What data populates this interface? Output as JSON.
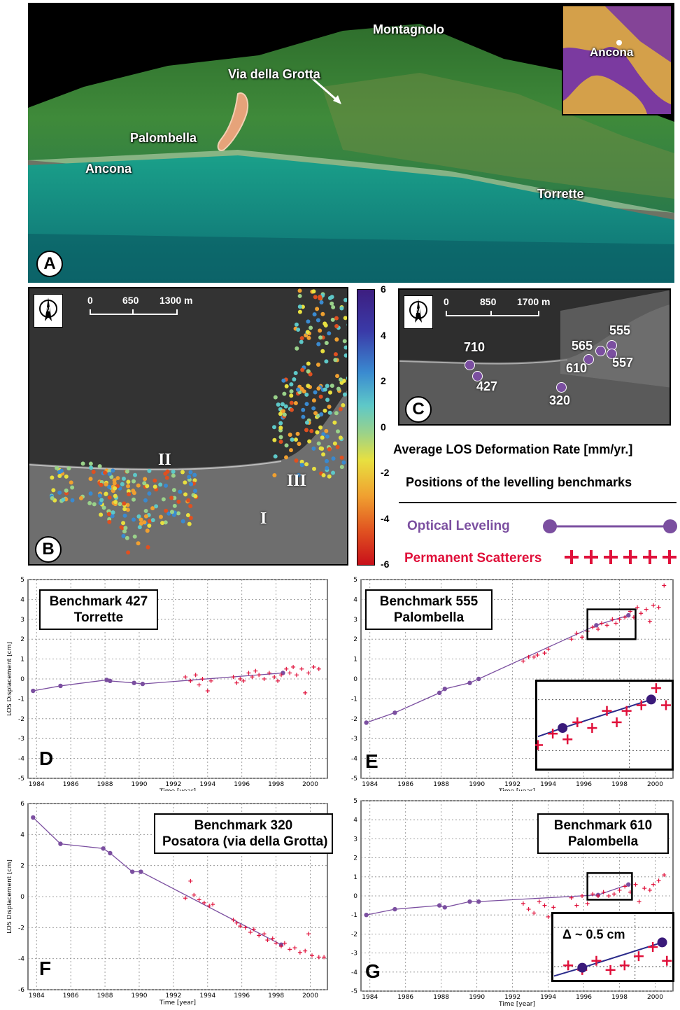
{
  "panel_a": {
    "letter": "A",
    "labels": {
      "montagnolo": "Montagnolo",
      "via_della_grotta": "Via della Grotta",
      "palombella": "Palombella",
      "ancona": "Ancona",
      "torrette": "Torrette"
    },
    "inset_label": "Ancona"
  },
  "panel_b": {
    "letter": "B",
    "scale": {
      "t0": "0",
      "t1": "650",
      "t2": "1300 m"
    },
    "zones": {
      "i": "I",
      "ii": "II",
      "iii": "III"
    }
  },
  "panel_c": {
    "letter": "C",
    "scale": {
      "t0": "0",
      "t1": "850",
      "t2": "1700 m"
    },
    "benchmarks": {
      "b710": "710",
      "b427": "427",
      "b565": "565",
      "b555": "555",
      "b557": "557",
      "b610": "610",
      "b320": "320"
    }
  },
  "colorbar": {
    "ticks": [
      "6",
      "4",
      "2",
      "0",
      "-2",
      "-4",
      "-6"
    ],
    "min": -6,
    "max": 6
  },
  "legend": {
    "title": "Average LOS Deformation Rate [mm/yr.]",
    "subtitle": "Positions of the levelling benchmarks",
    "optical": "Optical Leveling",
    "ps": "Permanent Scatterers",
    "colors": {
      "optical": "#7b4fa0",
      "ps": "#e0103a"
    }
  },
  "chart_data": [
    {
      "id": "D",
      "type": "scatter",
      "letter": "D",
      "box_line1": "Benchmark 427",
      "box_line2": "Torrette",
      "ylabel": "LOS Displacement [cm]",
      "xlabel": "Time [year]",
      "xlim": [
        1983.5,
        2001
      ],
      "ylim": [
        -5,
        5
      ],
      "yticks": [
        "5",
        "4",
        "3",
        "2",
        "1",
        "0",
        "-1",
        "-2",
        "-3",
        "-4",
        "-5"
      ],
      "xticks": [
        "1984",
        "1986",
        "1988",
        "1990",
        "1992",
        "1994",
        "1996",
        "1998",
        "2000"
      ],
      "optical": [
        [
          1983.8,
          -0.6
        ],
        [
          1985.4,
          -0.35
        ],
        [
          1988.1,
          -0.05
        ],
        [
          1988.3,
          -0.1
        ],
        [
          1989.7,
          -0.2
        ],
        [
          1990.2,
          -0.25
        ],
        [
          1998.4,
          0.3
        ]
      ],
      "ps": [
        [
          1992.7,
          0.1
        ],
        [
          1993.0,
          -0.1
        ],
        [
          1993.3,
          0.2
        ],
        [
          1993.5,
          -0.3
        ],
        [
          1993.7,
          0.0
        ],
        [
          1994.0,
          -0.6
        ],
        [
          1994.2,
          -0.1
        ],
        [
          1995.5,
          0.1
        ],
        [
          1995.7,
          -0.2
        ],
        [
          1995.9,
          0.0
        ],
        [
          1996.1,
          -0.1
        ],
        [
          1996.4,
          0.3
        ],
        [
          1996.6,
          0.1
        ],
        [
          1996.8,
          0.4
        ],
        [
          1997.0,
          0.2
        ],
        [
          1997.3,
          0.0
        ],
        [
          1997.6,
          0.3
        ],
        [
          1997.9,
          0.1
        ],
        [
          1998.1,
          -0.1
        ],
        [
          1998.3,
          0.2
        ],
        [
          1998.6,
          0.5
        ],
        [
          1998.8,
          0.3
        ],
        [
          1999.0,
          0.6
        ],
        [
          1999.2,
          0.2
        ],
        [
          1999.5,
          0.5
        ],
        [
          1999.7,
          -0.7
        ],
        [
          1999.9,
          0.3
        ],
        [
          2000.2,
          0.6
        ],
        [
          2000.5,
          0.5
        ]
      ]
    },
    {
      "id": "E",
      "type": "scatter",
      "letter": "E",
      "box_line1": "Benchmark 555",
      "box_line2": "Palombella",
      "ylabel": "",
      "xlabel": "Time [year]",
      "xlim": [
        1983.5,
        2001
      ],
      "ylim": [
        -5,
        5
      ],
      "yticks": [
        "5",
        "4",
        "3",
        "2",
        "1",
        "0",
        "-1",
        "-2",
        "-3",
        "-4",
        "-5"
      ],
      "xticks": [
        "1984",
        "1986",
        "1988",
        "1990",
        "1992",
        "1994",
        "1996",
        "1998",
        "2000"
      ],
      "optical": [
        [
          1983.8,
          -2.2
        ],
        [
          1985.4,
          -1.7
        ],
        [
          1987.9,
          -0.7
        ],
        [
          1988.2,
          -0.5
        ],
        [
          1989.6,
          -0.2
        ],
        [
          1990.1,
          0.0
        ],
        [
          1996.7,
          2.7
        ],
        [
          1998.5,
          3.2
        ]
      ],
      "ps": [
        [
          1992.6,
          0.9
        ],
        [
          1992.9,
          1.1
        ],
        [
          1993.2,
          1.1
        ],
        [
          1993.4,
          1.2
        ],
        [
          1993.8,
          1.3
        ],
        [
          1994.0,
          1.5
        ],
        [
          1995.3,
          2.0
        ],
        [
          1995.6,
          2.3
        ],
        [
          1995.9,
          2.1
        ],
        [
          1996.2,
          2.4
        ],
        [
          1996.5,
          2.6
        ],
        [
          1996.8,
          2.5
        ],
        [
          1997.0,
          2.8
        ],
        [
          1997.3,
          2.7
        ],
        [
          1997.6,
          3.0
        ],
        [
          1997.8,
          2.8
        ],
        [
          1998.0,
          3.0
        ],
        [
          1998.3,
          3.1
        ],
        [
          1998.6,
          3.4
        ],
        [
          1998.8,
          3.1
        ],
        [
          1999.0,
          3.6
        ],
        [
          1999.2,
          3.3
        ],
        [
          1999.5,
          3.5
        ],
        [
          1999.7,
          2.9
        ],
        [
          1999.9,
          3.7
        ],
        [
          2000.2,
          3.6
        ],
        [
          2000.5,
          4.7
        ]
      ],
      "inset_box": [
        1996.2,
        1998.9,
        2.0,
        3.5
      ]
    },
    {
      "id": "F",
      "type": "scatter",
      "letter": "F",
      "box_line1": "Benchmark 320",
      "box_line2": "Posatora (via della Grotta)",
      "ylabel": "LOS Displacement [cm]",
      "xlabel": "Time [year]",
      "xlim": [
        1983.5,
        2001
      ],
      "ylim": [
        -6,
        6
      ],
      "yticks": [
        "6",
        "4",
        "2",
        "0",
        "-2",
        "-4",
        "-6"
      ],
      "xticks": [
        "1984",
        "1986",
        "1988",
        "1990",
        "1992",
        "1994",
        "1996",
        "1998",
        "2000"
      ],
      "optical": [
        [
          1983.8,
          5.1
        ],
        [
          1985.4,
          3.4
        ],
        [
          1987.9,
          3.1
        ],
        [
          1988.3,
          2.8
        ],
        [
          1989.6,
          1.6
        ],
        [
          1990.1,
          1.6
        ],
        [
          1998.3,
          -3.1
        ]
      ],
      "ps": [
        [
          1992.7,
          -0.1
        ],
        [
          1993.0,
          1.0
        ],
        [
          1993.2,
          0.1
        ],
        [
          1993.5,
          -0.2
        ],
        [
          1993.8,
          -0.4
        ],
        [
          1994.1,
          -0.6
        ],
        [
          1994.3,
          -0.5
        ],
        [
          1995.5,
          -1.5
        ],
        [
          1995.7,
          -1.7
        ],
        [
          1995.9,
          -1.9
        ],
        [
          1996.2,
          -2.0
        ],
        [
          1996.5,
          -2.3
        ],
        [
          1996.7,
          -2.1
        ],
        [
          1997.0,
          -2.5
        ],
        [
          1997.3,
          -2.4
        ],
        [
          1997.5,
          -2.8
        ],
        [
          1997.8,
          -2.7
        ],
        [
          1998.0,
          -3.0
        ],
        [
          1998.3,
          -3.2
        ],
        [
          1998.5,
          -3.0
        ],
        [
          1998.8,
          -3.4
        ],
        [
          1999.1,
          -3.3
        ],
        [
          1999.4,
          -3.6
        ],
        [
          1999.7,
          -3.5
        ],
        [
          1999.9,
          -2.4
        ],
        [
          2000.1,
          -3.8
        ],
        [
          2000.5,
          -3.9
        ],
        [
          2000.8,
          -3.9
        ]
      ]
    },
    {
      "id": "G",
      "type": "scatter",
      "letter": "G",
      "box_line1": "Benchmark 610",
      "box_line2": "Palombella",
      "ylabel": "",
      "xlabel": "Time [year]",
      "xlim": [
        1983.5,
        2001
      ],
      "ylim": [
        -5,
        5
      ],
      "yticks": [
        "5",
        "4",
        "3",
        "2",
        "1",
        "0",
        "-1",
        "-2",
        "-3",
        "-4",
        "-5"
      ],
      "xticks": [
        "1984",
        "1986",
        "1988",
        "1990",
        "1992",
        "1994",
        "1996",
        "1998",
        "2000"
      ],
      "optical": [
        [
          1983.8,
          -1.0
        ],
        [
          1985.4,
          -0.7
        ],
        [
          1987.9,
          -0.5
        ],
        [
          1988.2,
          -0.6
        ],
        [
          1989.6,
          -0.3
        ],
        [
          1990.1,
          -0.3
        ],
        [
          1996.8,
          0.05
        ],
        [
          1998.5,
          0.6
        ]
      ],
      "ps": [
        [
          1992.6,
          -0.4
        ],
        [
          1992.9,
          -0.7
        ],
        [
          1993.2,
          -0.9
        ],
        [
          1993.5,
          -0.3
        ],
        [
          1993.8,
          -0.5
        ],
        [
          1994.0,
          -1.1
        ],
        [
          1994.3,
          -0.6
        ],
        [
          1995.3,
          -0.1
        ],
        [
          1995.6,
          -0.5
        ],
        [
          1995.9,
          0.0
        ],
        [
          1996.2,
          -0.4
        ],
        [
          1996.5,
          0.1
        ],
        [
          1996.8,
          0.0
        ],
        [
          1997.1,
          0.2
        ],
        [
          1997.4,
          0.0
        ],
        [
          1997.7,
          0.1
        ],
        [
          1998.0,
          0.3
        ],
        [
          1998.3,
          0.5
        ],
        [
          1998.6,
          0.2
        ],
        [
          1998.9,
          0.6
        ],
        [
          1999.1,
          -0.3
        ],
        [
          1999.4,
          0.4
        ],
        [
          1999.7,
          0.3
        ],
        [
          1999.9,
          0.6
        ],
        [
          2000.2,
          0.8
        ],
        [
          2000.5,
          1.1
        ]
      ],
      "inset_box": [
        1996.2,
        1998.7,
        -0.2,
        1.2
      ],
      "delta_label": "Δ ~ 0.5 cm"
    }
  ]
}
